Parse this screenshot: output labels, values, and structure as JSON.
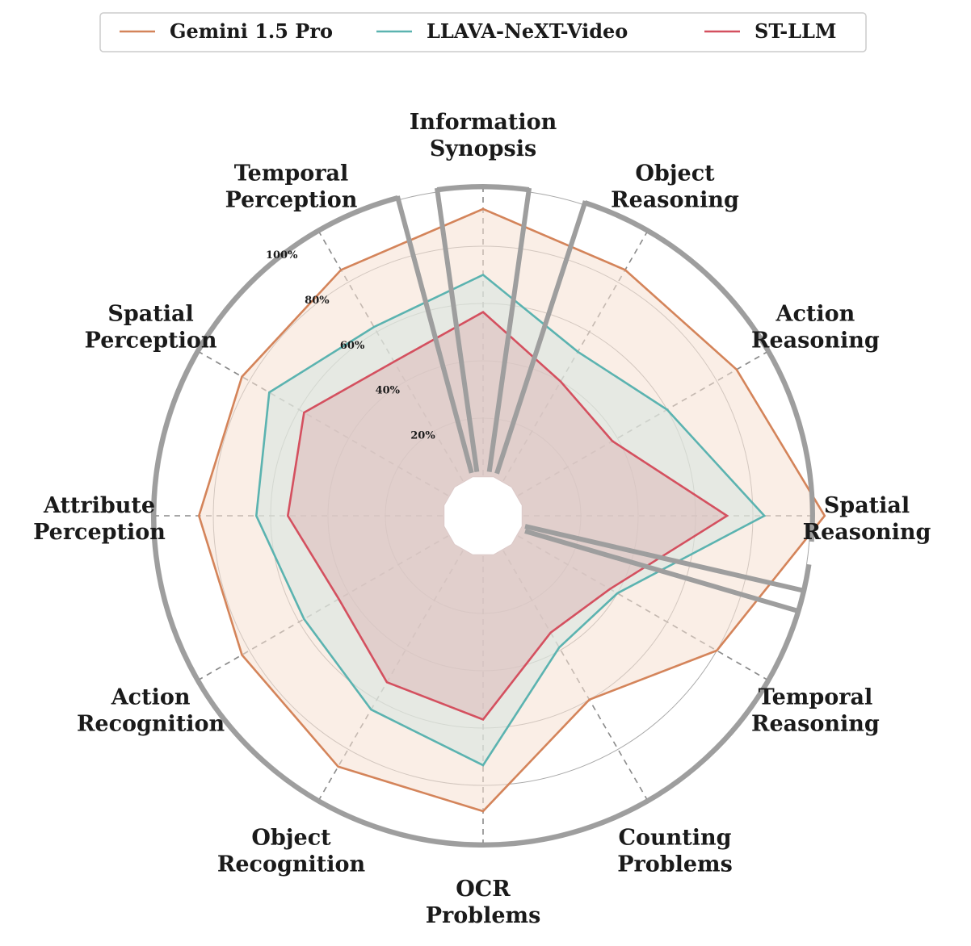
{
  "chart_data": {
    "type": "radar",
    "categories": [
      [
        "Information",
        "Synopsis"
      ],
      [
        "Object",
        "Reasoning"
      ],
      [
        "Action",
        "Reasoning"
      ],
      [
        "Spatial",
        "Reasoning"
      ],
      [
        "Temporal",
        "Reasoning"
      ],
      [
        "Counting",
        "Problems"
      ],
      [
        "OCR",
        "Problems"
      ],
      [
        "Object",
        "Recognition"
      ],
      [
        "Action",
        "Recognition"
      ],
      [
        "Attribute",
        "Perception"
      ],
      [
        "Spatial",
        "Perception"
      ],
      [
        "Temporal",
        "Perception"
      ]
    ],
    "rticks": [
      20,
      40,
      60,
      80,
      100
    ],
    "rtick_labels": [
      "20%",
      "40%",
      "60%",
      "80%",
      "100%"
    ],
    "rlim": [
      0,
      100
    ],
    "series": [
      {
        "name": "Gemini 1.5 Pro",
        "color": "#d4845a",
        "fill": "#f6e0d2",
        "values": [
          93,
          85,
          88,
          105,
          80,
          60,
          89,
          87,
          83,
          85,
          83,
          85
        ]
      },
      {
        "name": "LLAVA-NeXT-Video",
        "color": "#5bb3b0",
        "fill": "#d5e6e0",
        "values": [
          70,
          52,
          60,
          84,
          40,
          39,
          73,
          64,
          58,
          65,
          72,
          62
        ]
      },
      {
        "name": "ST-LLM",
        "color": "#d4505f",
        "fill": "#dcb9ba",
        "values": [
          57,
          40,
          38,
          71,
          37,
          33,
          57,
          53,
          44,
          54,
          58,
          48
        ]
      }
    ],
    "legend_position": "top",
    "grid": true
  }
}
